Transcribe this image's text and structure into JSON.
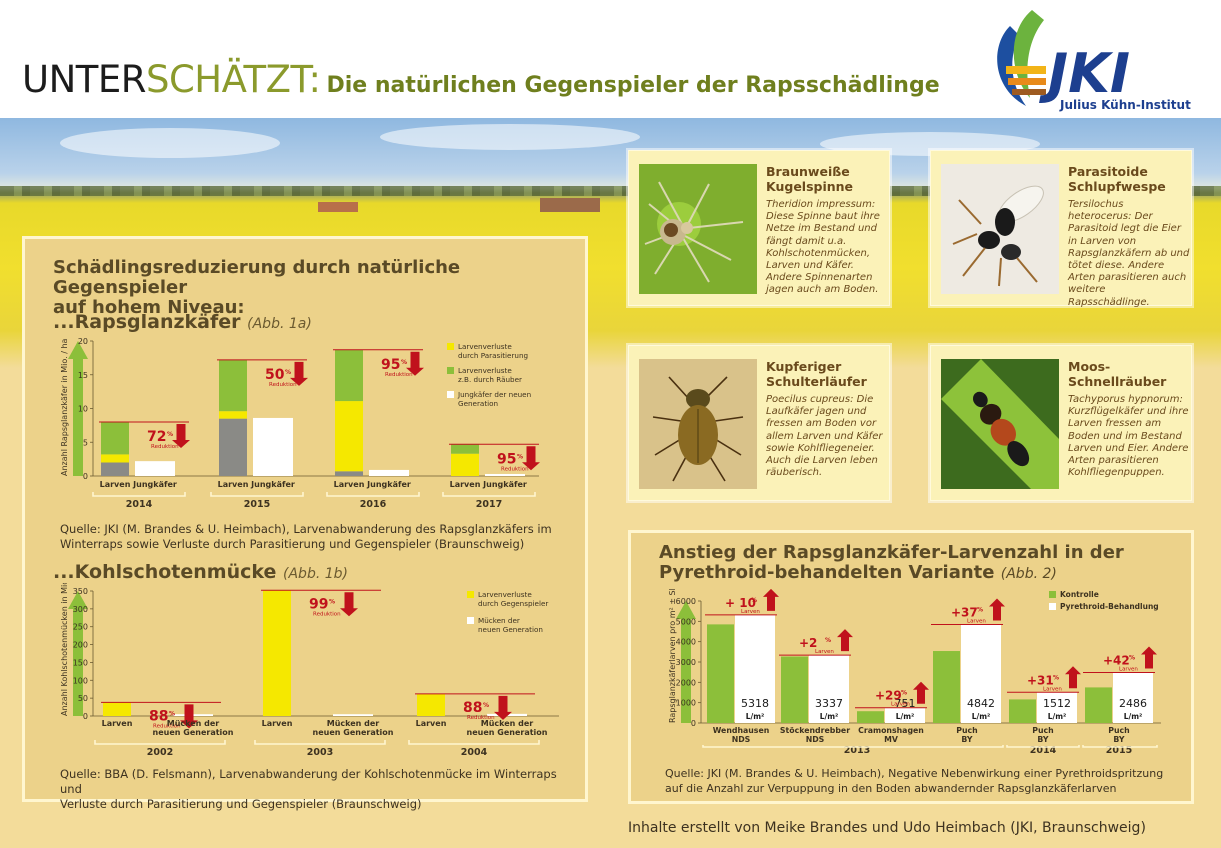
{
  "header": {
    "title_part1": "UNTER",
    "title_part2": "SCHÄTZT:",
    "title_part3": "Die natürlichen Gegenspieler der Rapsschädlinge",
    "logo_letters": "JKI",
    "logo_name": "Julius Kühn-Institut"
  },
  "left_panel": {
    "heading_line1": "Schädlingsreduzierung durch natürliche Gegenspieler",
    "heading_line2": "auf hohem Niveau:",
    "section1_title": "...Rapsglanzkäfer",
    "section1_abb": "(Abb. 1a)",
    "section1_caption_line1": "Quelle: JKI (M. Brandes & U. Heimbach), Larvenabwanderung des Rapsglanzkäfers im",
    "section1_caption_line2": "Winterraps sowie Verluste durch Parasitierung und Gegenspieler (Braunschweig)",
    "section2_title": "...Kohlschotenmücke",
    "section2_abb": "(Abb. 1b)",
    "section2_caption_line1": "Quelle: BBA (D. Felsmann), Larvenabwanderung der Kohlschotenmücke im Winterraps und",
    "section2_caption_line2": "Verluste durch Parasitierung und Gegenspieler (Braunschweig)"
  },
  "right_panel": {
    "heading_line1": "Anstieg der Rapsglanzkäfer-Larvenzahl in der",
    "heading_line2": "Pyrethroid-behandelten Variante",
    "abb": "(Abb. 2)",
    "caption_line1": "Quelle: JKI (M. Brandes & U. Heimbach), Negative Nebenwirkung einer Pyrethroidspritzung",
    "caption_line2": "auf die Anzahl zur Verpuppung in den Boden abwandernder Rapsglanzkäferlarven"
  },
  "cards": [
    {
      "name": "Braunweiße Kugelspinne",
      "latin": "Theridion impressum:",
      "text": "Diese Spinne baut ihre Netze im Bestand und fängt damit u.a. Kohlschotenmücken, Larven und Käfer. Andere Spinnenarten jagen auch am Boden."
    },
    {
      "name": "Parasitoide Schlupfwespe",
      "latin": "Tersilochus heterocerus:",
      "text": "Der Parasitoid legt die Eier in Larven von Rapsglanzkäfern ab und tötet diese. Andere Arten parasitieren auch weitere Rapsschädlinge."
    },
    {
      "name": "Kupferiger Schulterläufer",
      "latin": "Poecilus cupreus:",
      "text": "Die Laufkäfer jagen und fressen am Boden vor allem Larven und Käfer sowie Kohlfliegeneier. Auch die Larven leben räuberisch."
    },
    {
      "name": "Moos-Schnellräuber",
      "latin": "Tachyporus hypnorum:",
      "text": "Kurzflügelkäfer und ihre Larven fressen am Boden und im Bestand Larven und Eier. Andere Arten parasitieren Kohlfliegenpuppen."
    }
  ],
  "credit": "Inhalte erstellt von Meike Brandes und Udo Heimbach (JKI, Braunschweig)",
  "colors": {
    "parasit": "#f5e800",
    "raeuber": "#8cbf3a",
    "new_gen": "#ffffff",
    "grey": "#8a8a86",
    "red": "#c0121c",
    "kontrolle": "#8cbf3a"
  },
  "chart_data": [
    {
      "type": "bar",
      "id": "abb1a",
      "ylabel": "Anzahl Rapsglanzkäfer in Mio. / ha",
      "ylim": [
        0,
        20
      ],
      "yticks": [
        0,
        5,
        10,
        15,
        20
      ],
      "legend": [
        "Larvenverluste durch Parasitierung",
        "Larvenverluste z.B. durch Räuber",
        "Jungkäfer der neuen Generation"
      ],
      "reduction_word": "Reduktion",
      "years": [
        {
          "year": "2014",
          "labels": [
            "Larven",
            "Jungkäfer"
          ],
          "larven_base": 2,
          "parasit": 1.2,
          "raeuber": 4.8,
          "jungkaefer": 2.2,
          "reduction": "72"
        },
        {
          "year": "2015",
          "labels": [
            "Larven",
            "Jungkäfer"
          ],
          "larven_base": 8.5,
          "parasit": 1.1,
          "raeuber": 7.6,
          "jungkaefer": 8.6,
          "reduction": "50"
        },
        {
          "year": "2016",
          "labels": [
            "Larven",
            "Jungkäfer"
          ],
          "larven_base": 0.7,
          "parasit": 10.4,
          "raeuber": 7.6,
          "jungkaefer": 0.9,
          "reduction": "95"
        },
        {
          "year": "2017",
          "labels": [
            "Larven",
            "Jungkäfer"
          ],
          "larven_base": 0,
          "parasit": 3.3,
          "raeuber": 1.4,
          "jungkaefer": 0.3,
          "reduction": "95"
        }
      ]
    },
    {
      "type": "bar",
      "id": "abb1b",
      "ylabel": "Anzahl Kohlschotenmücken in Mio. / ha",
      "ylim": [
        0,
        350
      ],
      "yticks": [
        0,
        50,
        100,
        150,
        200,
        250,
        300,
        350
      ],
      "legend": [
        "Larvenverluste durch Gegenspieler",
        "Mücken der neuen Generation"
      ],
      "reduction_word": "Reduktion",
      "years": [
        {
          "year": "2002",
          "labels": [
            "Larven",
            "Mücken der neuen Generation"
          ],
          "larven": 38,
          "muecken": 5,
          "reduction": "88"
        },
        {
          "year": "2003",
          "labels": [
            "Larven",
            "Mücken der neuen Generation"
          ],
          "larven": 352,
          "muecken": 5,
          "reduction": "99"
        },
        {
          "year": "2004",
          "labels": [
            "Larven",
            "Mücken der neuen Generation"
          ],
          "larven": 62,
          "muecken": 6,
          "reduction": "88"
        }
      ]
    },
    {
      "type": "bar",
      "id": "abb2",
      "ylabel": "Rapsglanzkäferlarven pro m² ± SE",
      "ylim": [
        0,
        6000
      ],
      "yticks": [
        0,
        1000,
        2000,
        3000,
        4000,
        5000,
        6000
      ],
      "legend": [
        "Kontrolle",
        "Pyrethroid-Behandlung"
      ],
      "unit": "L/m²",
      "larven_word": "Larven",
      "groups": [
        {
          "site": [
            "Wendhausen",
            "NDS"
          ],
          "kontrolle": 4850,
          "pyrethroid": 5318,
          "label": "5318",
          "increase": "+ 10",
          "year": ""
        },
        {
          "site": [
            "Stöckendrebber",
            "NDS"
          ],
          "kontrolle": 3270,
          "pyrethroid": 3337,
          "label": "3337",
          "increase": "+2",
          "year": "2013"
        },
        {
          "site": [
            "Cramonshagen",
            "MV"
          ],
          "kontrolle": 580,
          "pyrethroid": 751,
          "label": "751",
          "increase": "+29",
          "year": ""
        },
        {
          "site": [
            "Puch",
            "BY"
          ],
          "kontrolle": 3540,
          "pyrethroid": 4842,
          "label": "4842",
          "increase": "+37",
          "year": ""
        },
        {
          "site": [
            "Puch",
            "BY"
          ],
          "kontrolle": 1160,
          "pyrethroid": 1512,
          "label": "1512",
          "increase": "+31",
          "year": "2014"
        },
        {
          "site": [
            "Puch",
            "BY"
          ],
          "kontrolle": 1750,
          "pyrethroid": 2486,
          "label": "2486",
          "increase": "+42",
          "year": "2015"
        }
      ]
    }
  ]
}
